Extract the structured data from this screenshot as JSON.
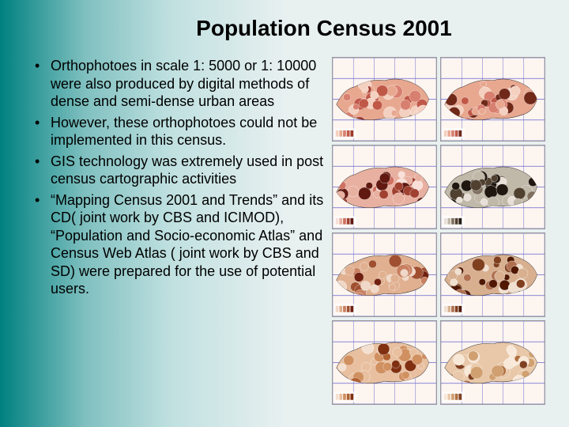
{
  "slide": {
    "title": "Population Census 2001",
    "bullets": [
      "Orthophotoes in scale 1: 5000 or 1: 10000 were also produced by digital methods of dense and semi-dense urban areas",
      "However, these orthophotoes could not be implemented in this census.",
      "GIS technology was extremely used in post census cartographic activities",
      "“Mapping Census 2001 and Trends” and its CD( joint work by CBS and ICIMOD), “Population and Socio-economic Atlas” and Census Web Atlas ( joint work by CBS and SD) were prepared for the use of potential users."
    ]
  },
  "maps": {
    "panels": [
      {
        "palette": [
          "#f4d0c0",
          "#e8a890",
          "#d88070",
          "#c05848",
          "#a03828"
        ],
        "grid": true
      },
      {
        "palette": [
          "#f4d0c0",
          "#e8a890",
          "#d88070",
          "#c05848",
          "#702818"
        ],
        "grid": true
      },
      {
        "palette": [
          "#f8e0d8",
          "#e8b0a0",
          "#d07060",
          "#a04030",
          "#601810"
        ],
        "grid": true
      },
      {
        "palette": [
          "#e8e0d8",
          "#c0b8a8",
          "#807060",
          "#504030",
          "#201810"
        ],
        "grid": true
      },
      {
        "palette": [
          "#f0d8c8",
          "#e0b090",
          "#c88060",
          "#a05030",
          "#702010"
        ],
        "grid": true
      },
      {
        "palette": [
          "#f0e0d0",
          "#d8b090",
          "#b07050",
          "#804020",
          "#501800"
        ],
        "grid": true
      },
      {
        "palette": [
          "#f4e0d0",
          "#e8c0a0",
          "#d09060",
          "#b06030",
          "#803010"
        ],
        "grid": true
      },
      {
        "palette": [
          "#f8e8d8",
          "#e8c8a8",
          "#d0a070",
          "#b07040",
          "#804020"
        ],
        "grid": true
      }
    ],
    "background": "#fdf5f0",
    "grid_color": "#6666cc"
  },
  "styling": {
    "title_fontsize": 28,
    "body_fontsize": 18,
    "title_color": "#000000",
    "body_color": "#000000",
    "gradient_start": "#008080",
    "gradient_end": "#e8f0f0"
  }
}
